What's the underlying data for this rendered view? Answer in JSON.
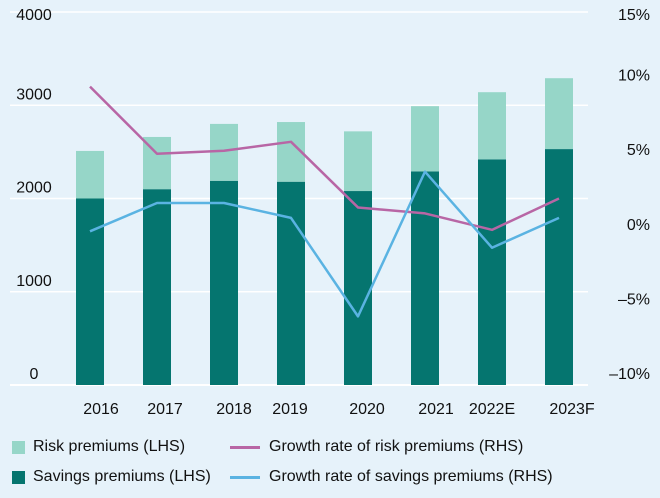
{
  "chart_data": {
    "type": "bar",
    "categories": [
      "2016",
      "2017",
      "2018",
      "2019",
      "2020",
      "2021",
      "2022E",
      "2023F"
    ],
    "series": [
      {
        "name": "Savings premiums (LHS)",
        "kind": "stacked-bar",
        "axis": "left",
        "color": "#05756f",
        "values": [
          2000,
          2100,
          2190,
          2180,
          2080,
          2290,
          2420,
          2530
        ]
      },
      {
        "name": "Risk premiums (LHS)",
        "kind": "stacked-bar",
        "axis": "left",
        "color": "#96d6c8",
        "values": [
          510,
          560,
          610,
          640,
          640,
          700,
          720,
          760
        ]
      },
      {
        "name": "Growth rate of risk premiums (RHS)",
        "kind": "line",
        "axis": "right",
        "color": "#b866a5",
        "values": [
          10.0,
          5.5,
          5.7,
          6.3,
          1.9,
          1.5,
          0.4,
          2.5
        ]
      },
      {
        "name": "Growth rate of savings premiums (RHS)",
        "kind": "line",
        "axis": "right",
        "color": "#5ab3e2",
        "values": [
          0.3,
          2.2,
          2.2,
          1.2,
          -5.4,
          4.3,
          -0.8,
          1.2
        ]
      }
    ],
    "y_left": {
      "min": 0,
      "max": 4000,
      "ticks": [
        "0",
        "1000",
        "2000",
        "3000",
        "4000"
      ]
    },
    "y_right": {
      "min": -10,
      "max": 15,
      "ticks": [
        "–10%",
        "–5%",
        "0%",
        "5%",
        "10%",
        "15%"
      ]
    },
    "grid": true,
    "legend_position": "bottom"
  },
  "legend": [
    {
      "label": "Risk premiums (LHS)",
      "shape": "box",
      "color": "#96d6c8"
    },
    {
      "label": "Growth rate of risk premiums (RHS)",
      "shape": "line",
      "color": "#b866a5"
    },
    {
      "label": "Savings premiums (LHS)",
      "shape": "box",
      "color": "#05756f"
    },
    {
      "label": "Growth rate of savings premiums (RHS)",
      "shape": "line",
      "color": "#5ab3e2"
    }
  ]
}
